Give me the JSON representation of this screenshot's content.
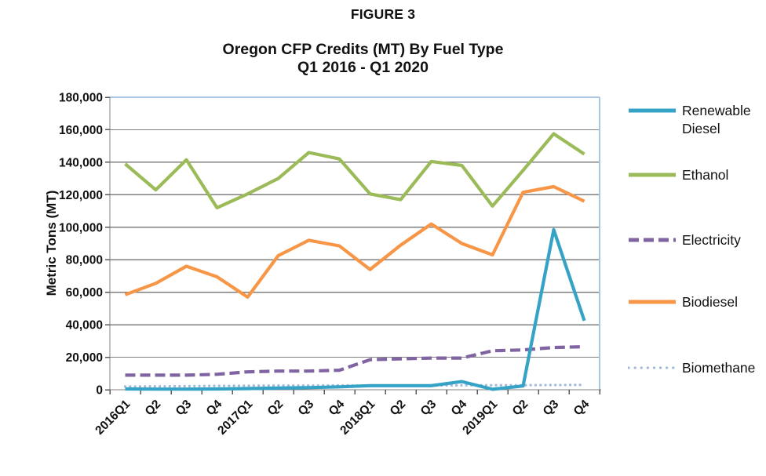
{
  "figure_label": "FIGURE 3",
  "title": {
    "line1": "Oregon CFP Credits (MT) By Fuel Type",
    "line2": "Q1 2016 - Q1 2020"
  },
  "y_axis": {
    "title": "Metric Tons (MT)",
    "tick_labels": [
      "0",
      "20,000",
      "40,000",
      "60,000",
      "80,000",
      "100,000",
      "120,000",
      "140,000",
      "160,000",
      "180,000"
    ]
  },
  "chart_data": {
    "type": "line",
    "title": "Oregon CFP Credits (MT) By Fuel Type Q1 2016 - Q1 2020",
    "xlabel": "",
    "ylabel": "Metric Tons (MT)",
    "ylim": [
      0,
      180000
    ],
    "ytick_step": 20000,
    "grid": true,
    "legend_position": "right",
    "categories": [
      "2016Q1",
      "Q2",
      "Q3",
      "Q4",
      "2017Q1",
      "Q2",
      "Q3",
      "Q4",
      "2018Q1",
      "Q2",
      "Q3",
      "Q4",
      "2019Q1",
      "Q2",
      "Q3",
      "Q4"
    ],
    "series": [
      {
        "name": "Renewable Diesel",
        "color": "#35A3C6",
        "style": "solid",
        "values": [
          500,
          400,
          400,
          500,
          700,
          1000,
          1300,
          1800,
          2500,
          2500,
          2500,
          5000,
          300,
          2300,
          98500,
          42500
        ]
      },
      {
        "name": "Ethanol",
        "color": "#9BBB59",
        "style": "solid",
        "values": [
          139000,
          123000,
          141500,
          112000,
          120500,
          130000,
          146000,
          142000,
          120500,
          117000,
          140500,
          138000,
          113000,
          135000,
          157500,
          145000
        ]
      },
      {
        "name": "Electricity",
        "color": "#8064A2",
        "style": "dashed",
        "values": [
          9000,
          9000,
          9000,
          9500,
          11000,
          11500,
          11500,
          12000,
          18500,
          19000,
          19500,
          19500,
          24000,
          24500,
          26000,
          26500
        ]
      },
      {
        "name": "Biodiesel",
        "color": "#F79646",
        "style": "solid",
        "values": [
          58500,
          65500,
          76000,
          69500,
          57000,
          82500,
          92000,
          88500,
          74000,
          89000,
          102000,
          90000,
          83000,
          121500,
          125000,
          116000
        ]
      },
      {
        "name": "Biomethane",
        "color": "#A3B9DC",
        "style": "dotted",
        "values": [
          2000,
          2100,
          2200,
          2400,
          2500,
          2600,
          2600,
          2700,
          2500,
          2500,
          2600,
          2700,
          2800,
          2800,
          2900,
          3000
        ]
      }
    ]
  },
  "style": {
    "gridline_color": "#7F7F7F",
    "axis_color": "#808080",
    "tick_color": "#595959",
    "plot_border_color": "#A9C7E3",
    "text_color": "#111111"
  }
}
